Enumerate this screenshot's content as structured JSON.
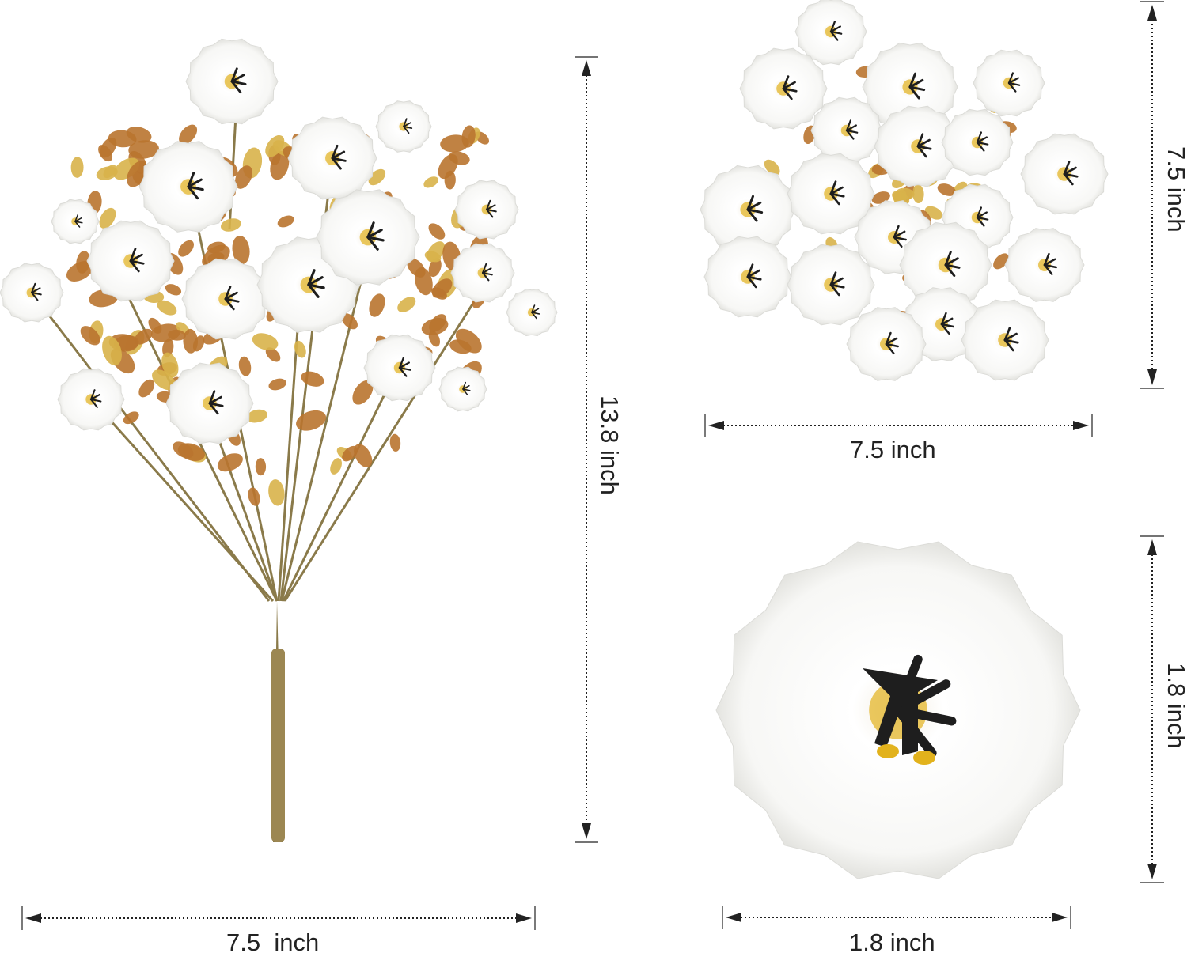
{
  "product_views": [
    {
      "name": "bouquet",
      "height_label": "13.8 inch",
      "width_label": "7.5  inch"
    },
    {
      "name": "flower-heads-cluster",
      "height_label": "7.5 inch",
      "width_label": "7.5 inch"
    },
    {
      "name": "single-flower",
      "height_label": "1.8 inch",
      "width_label": "1.8 inch"
    }
  ],
  "colors": {
    "petal": "#ffffff",
    "stamen": "#1e1e1e",
    "pollen": "#e2b21c",
    "leaf": "#b9742f",
    "leaf_light": "#d8b24a",
    "stem": "#8a7a4a",
    "dimension_line": "#222222"
  }
}
